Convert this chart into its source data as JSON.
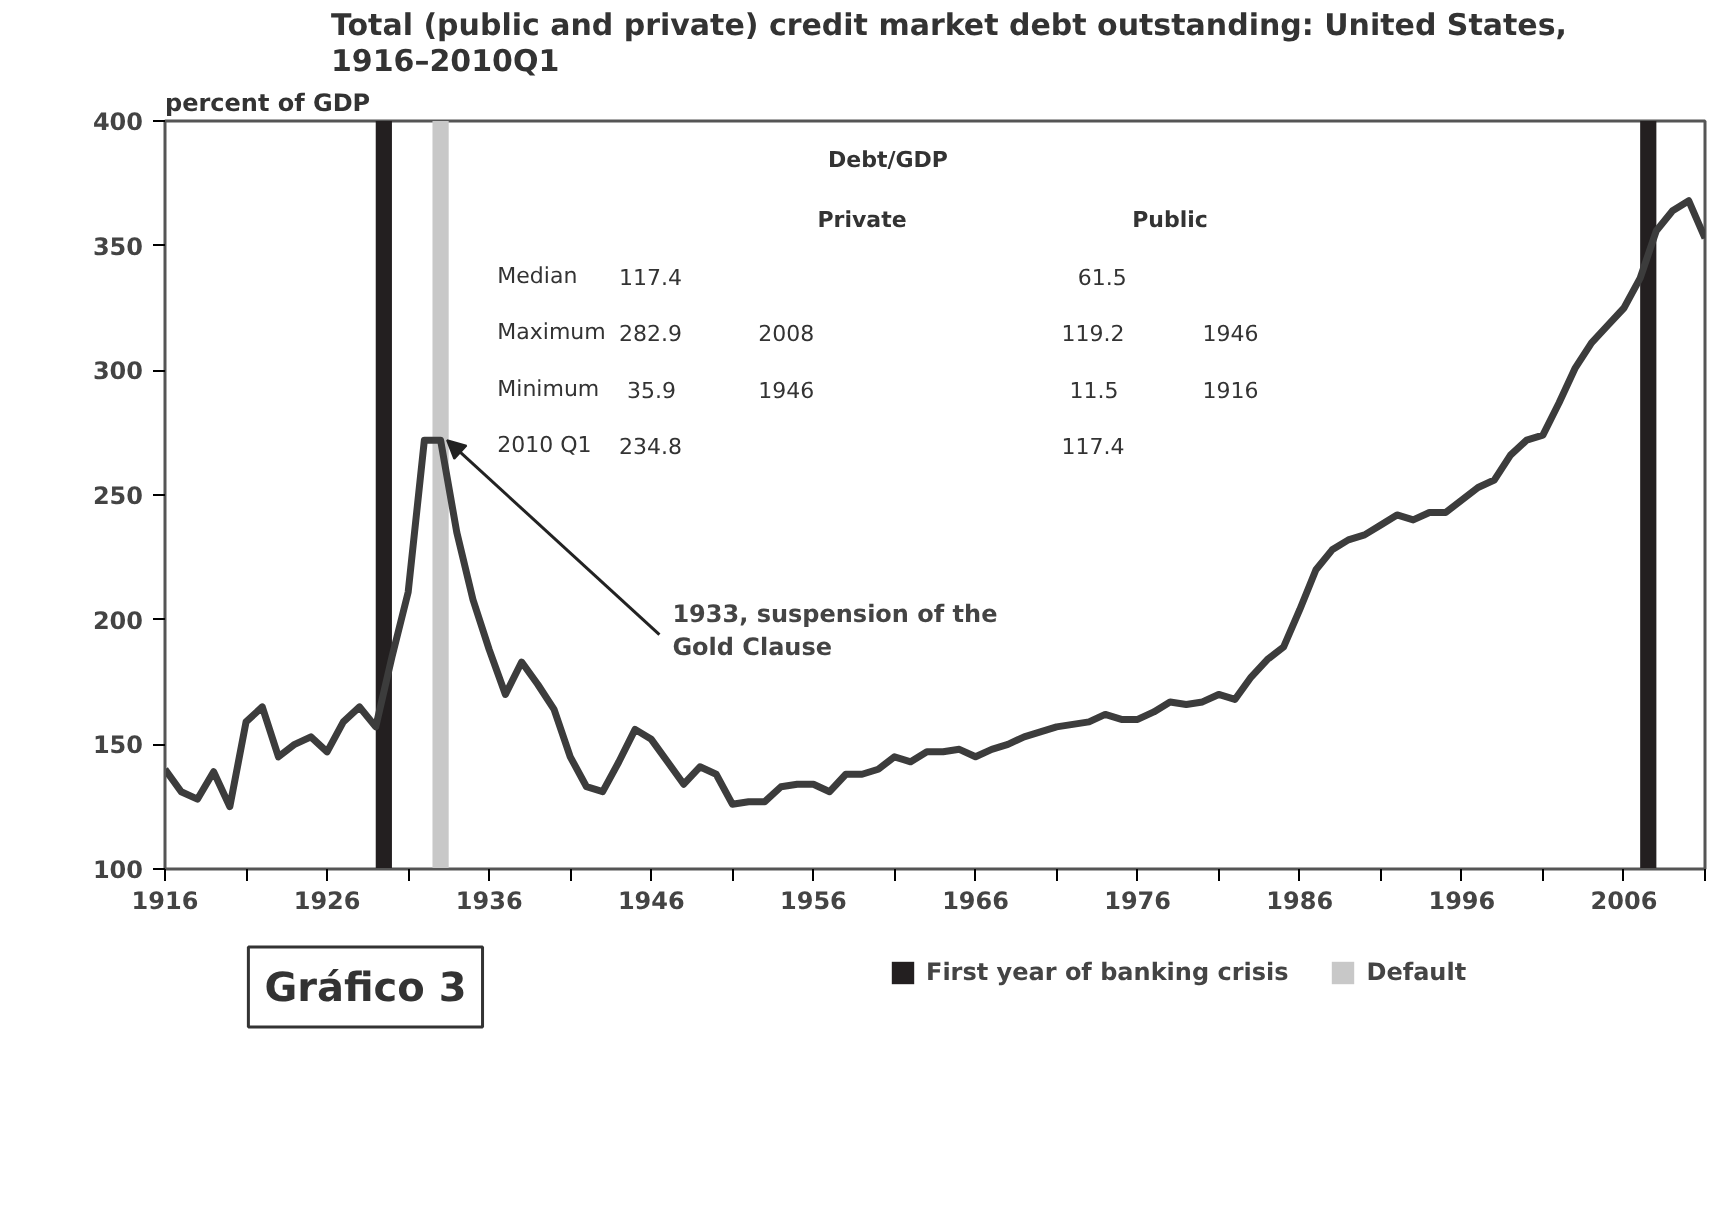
{
  "chart_data": {
    "type": "line",
    "title": "Total (public and private) credit market debt outstanding: United States,\n1916–2010Q1",
    "ylabel": "percent of GDP",
    "x": [
      1916,
      1917,
      1918,
      1919,
      1920,
      1921,
      1922,
      1923,
      1924,
      1925,
      1926,
      1927,
      1928,
      1929,
      1930,
      1931,
      1932,
      1933,
      1934,
      1935,
      1936,
      1937,
      1938,
      1939,
      1940,
      1941,
      1942,
      1943,
      1944,
      1945,
      1946,
      1947,
      1948,
      1949,
      1950,
      1951,
      1952,
      1953,
      1954,
      1955,
      1956,
      1957,
      1958,
      1959,
      1960,
      1961,
      1962,
      1963,
      1964,
      1965,
      1966,
      1967,
      1968,
      1969,
      1970,
      1971,
      1972,
      1973,
      1974,
      1975,
      1976,
      1977,
      1978,
      1979,
      1980,
      1981,
      1982,
      1983,
      1984,
      1985,
      1986,
      1987,
      1988,
      1989,
      1990,
      1991,
      1992,
      1993,
      1994,
      1995,
      1996,
      1997,
      1998,
      1999,
      2000,
      2001,
      2002,
      2003,
      2004,
      2005,
      2006,
      2007,
      2008,
      2009,
      2010,
      2011
    ],
    "series": [
      {
        "color": "#3c3c3c",
        "values": [
          140,
          131,
          128,
          139,
          125,
          159,
          165,
          145,
          150,
          153,
          147,
          159,
          165,
          157,
          185,
          211,
          272,
          272,
          235,
          208,
          188,
          170,
          183,
          174,
          164,
          145,
          133,
          131,
          143,
          156,
          152,
          143,
          134,
          141,
          138,
          126,
          127,
          127,
          133,
          134,
          134,
          131,
          138,
          138,
          140,
          145,
          143,
          147,
          147,
          148,
          145,
          148,
          150,
          153,
          155,
          157,
          158,
          159,
          162,
          160,
          160,
          163,
          167,
          166,
          167,
          170,
          168,
          177,
          184,
          189,
          204,
          220,
          228,
          232,
          234,
          238,
          242,
          240,
          243,
          243,
          248,
          253,
          256,
          266,
          272,
          274,
          287,
          301,
          311,
          318,
          325,
          337,
          356,
          364,
          368,
          353
        ]
      }
    ],
    "xlim": [
      1916,
      2011
    ],
    "xticks": [
      1916,
      {
        "value": 1921,
        "label": null
      },
      1926,
      {
        "value": 1931,
        "label": null
      },
      1936,
      {
        "value": 1941,
        "label": null
      },
      1946,
      {
        "value": 1951,
        "label": null
      },
      1956,
      {
        "value": 1961,
        "label": null
      },
      1966,
      {
        "value": 1971,
        "label": null
      },
      1976,
      {
        "value": 1981,
        "label": null
      },
      1986,
      {
        "value": 1991,
        "label": null
      },
      1996,
      {
        "value": 2001,
        "label": null
      },
      2006,
      {
        "value": 2011,
        "label": null
      }
    ],
    "ylim": [
      100,
      400
    ],
    "yticks": [
      100,
      150,
      200,
      250,
      300,
      350,
      400
    ],
    "grid": false,
    "legend": "bottom",
    "line_style": "solid",
    "marker": "none",
    "bands": [
      {
        "axis": "x",
        "from": 1929,
        "to": 1930,
        "label": "First year of banking crisis",
        "color": "#231f20"
      },
      {
        "axis": "x",
        "from": 1932.5,
        "to": 1933.5,
        "label": "Default",
        "color": "#c8c8c8"
      },
      {
        "axis": "x",
        "from": 2007,
        "to": 2008,
        "label": null,
        "color": "#231f20"
      }
    ],
    "annotations": [
      {
        "text": "1933, suspension of the\nGold Clause",
        "x": 1933,
        "y": 272
      },
      "Gráfico 3",
      "Debt/GDP",
      "Private",
      "Public",
      "Median",
      "117.4",
      "61.5",
      "Maximum",
      "282.9",
      "2008",
      "119.2",
      "1946",
      "Minimum",
      "35.9",
      "1946",
      "11.5",
      "1916",
      "2010 Q1",
      "234.8",
      "117.4"
    ]
  }
}
